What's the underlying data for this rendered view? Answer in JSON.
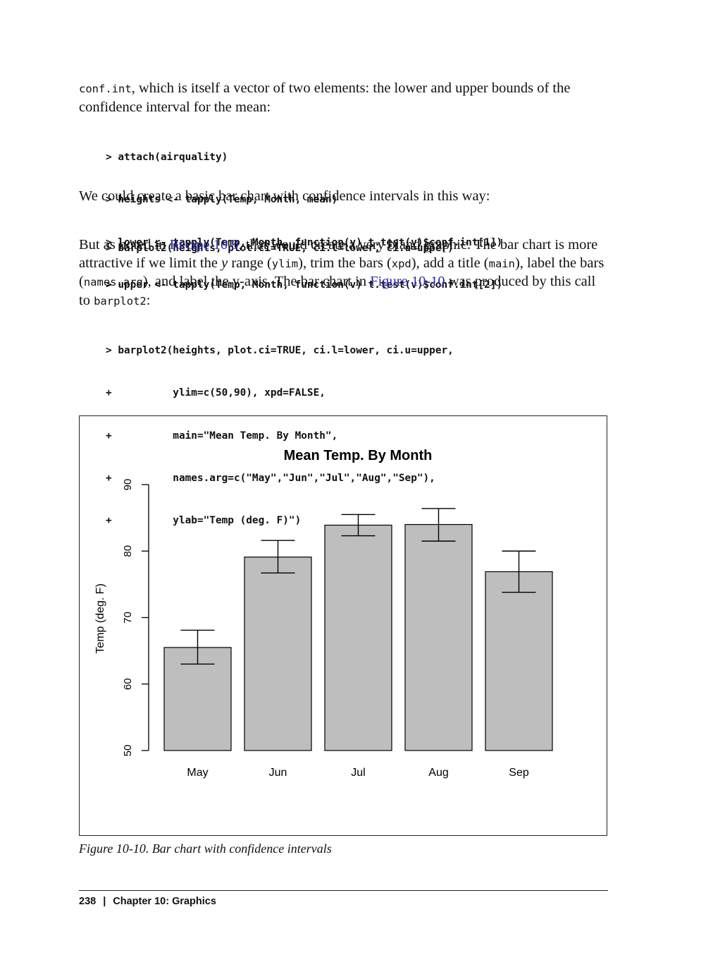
{
  "intro": {
    "code_term": "conf.int",
    "text": ", which is itself a vector of two elements: the lower and upper bounds of the confidence interval for the mean:"
  },
  "code_block_1": [
    "> attach(airquality)",
    "> heights <- tapply(Temp, Month, mean)",
    "> lower <- tapply(Temp, Month, function(v) t.test(v)$conf.int[1])",
    "> upper <- tapply(Temp, Month, function(v) t.test(v)$conf.int[2])"
  ],
  "para_2": "We could create a basic bar chart with confidence intervals in this way:",
  "code_block_2": [
    "> barplot2(heights, plot.ci=TRUE, ci.l=lower, ci.u=upper)"
  ],
  "para_3": {
    "t1": "But as noted in ",
    "link1": "Recipe 10.9",
    "t2": ", that would create a very bland graphic. The bar chart is more attractive if we limit the ",
    "y_italic": "y",
    "t3": " range (",
    "c1": "ylim",
    "t4": "), trim the bars (",
    "c2": "xpd",
    "t5": "), add a title (",
    "c3": "main",
    "t6": "), label the bars (",
    "c4": "names.arg",
    "t7": "), and label the y-axis. The bar chart in ",
    "link2": "Figure 10-10",
    "t8": " was produced by this call to ",
    "c5": "barplot2",
    "t9": ":"
  },
  "code_block_3": [
    "> barplot2(heights, plot.ci=TRUE, ci.l=lower, ci.u=upper,",
    "+          ylim=c(50,90), xpd=FALSE,",
    "+          main=\"Mean Temp. By Month\",",
    "+          names.arg=c(\"May\",\"Jun\",\"Jul\",\"Aug\",\"Sep\"),",
    "+          ylab=\"Temp (deg. F)\")"
  ],
  "chart_data": {
    "type": "bar",
    "title": "Mean Temp. By Month",
    "xlabel": "",
    "ylabel": "Temp (deg. F)",
    "categories": [
      "May",
      "Jun",
      "Jul",
      "Aug",
      "Sep"
    ],
    "values": [
      65.5,
      79.1,
      83.9,
      84.0,
      76.9
    ],
    "ci_lower": [
      63.0,
      76.7,
      82.3,
      81.5,
      73.8
    ],
    "ci_upper": [
      68.1,
      81.6,
      85.5,
      86.4,
      80.0
    ],
    "ylim": [
      50,
      90
    ],
    "yticks": [
      50,
      60,
      70,
      80,
      90
    ],
    "bar_color": "#bebebe",
    "grid": false,
    "legend": "none"
  },
  "caption": "Figure 10-10. Bar chart with confidence intervals",
  "footer": {
    "page_number": "238",
    "separator": "|",
    "chapter": "Chapter 10:  Graphics"
  }
}
